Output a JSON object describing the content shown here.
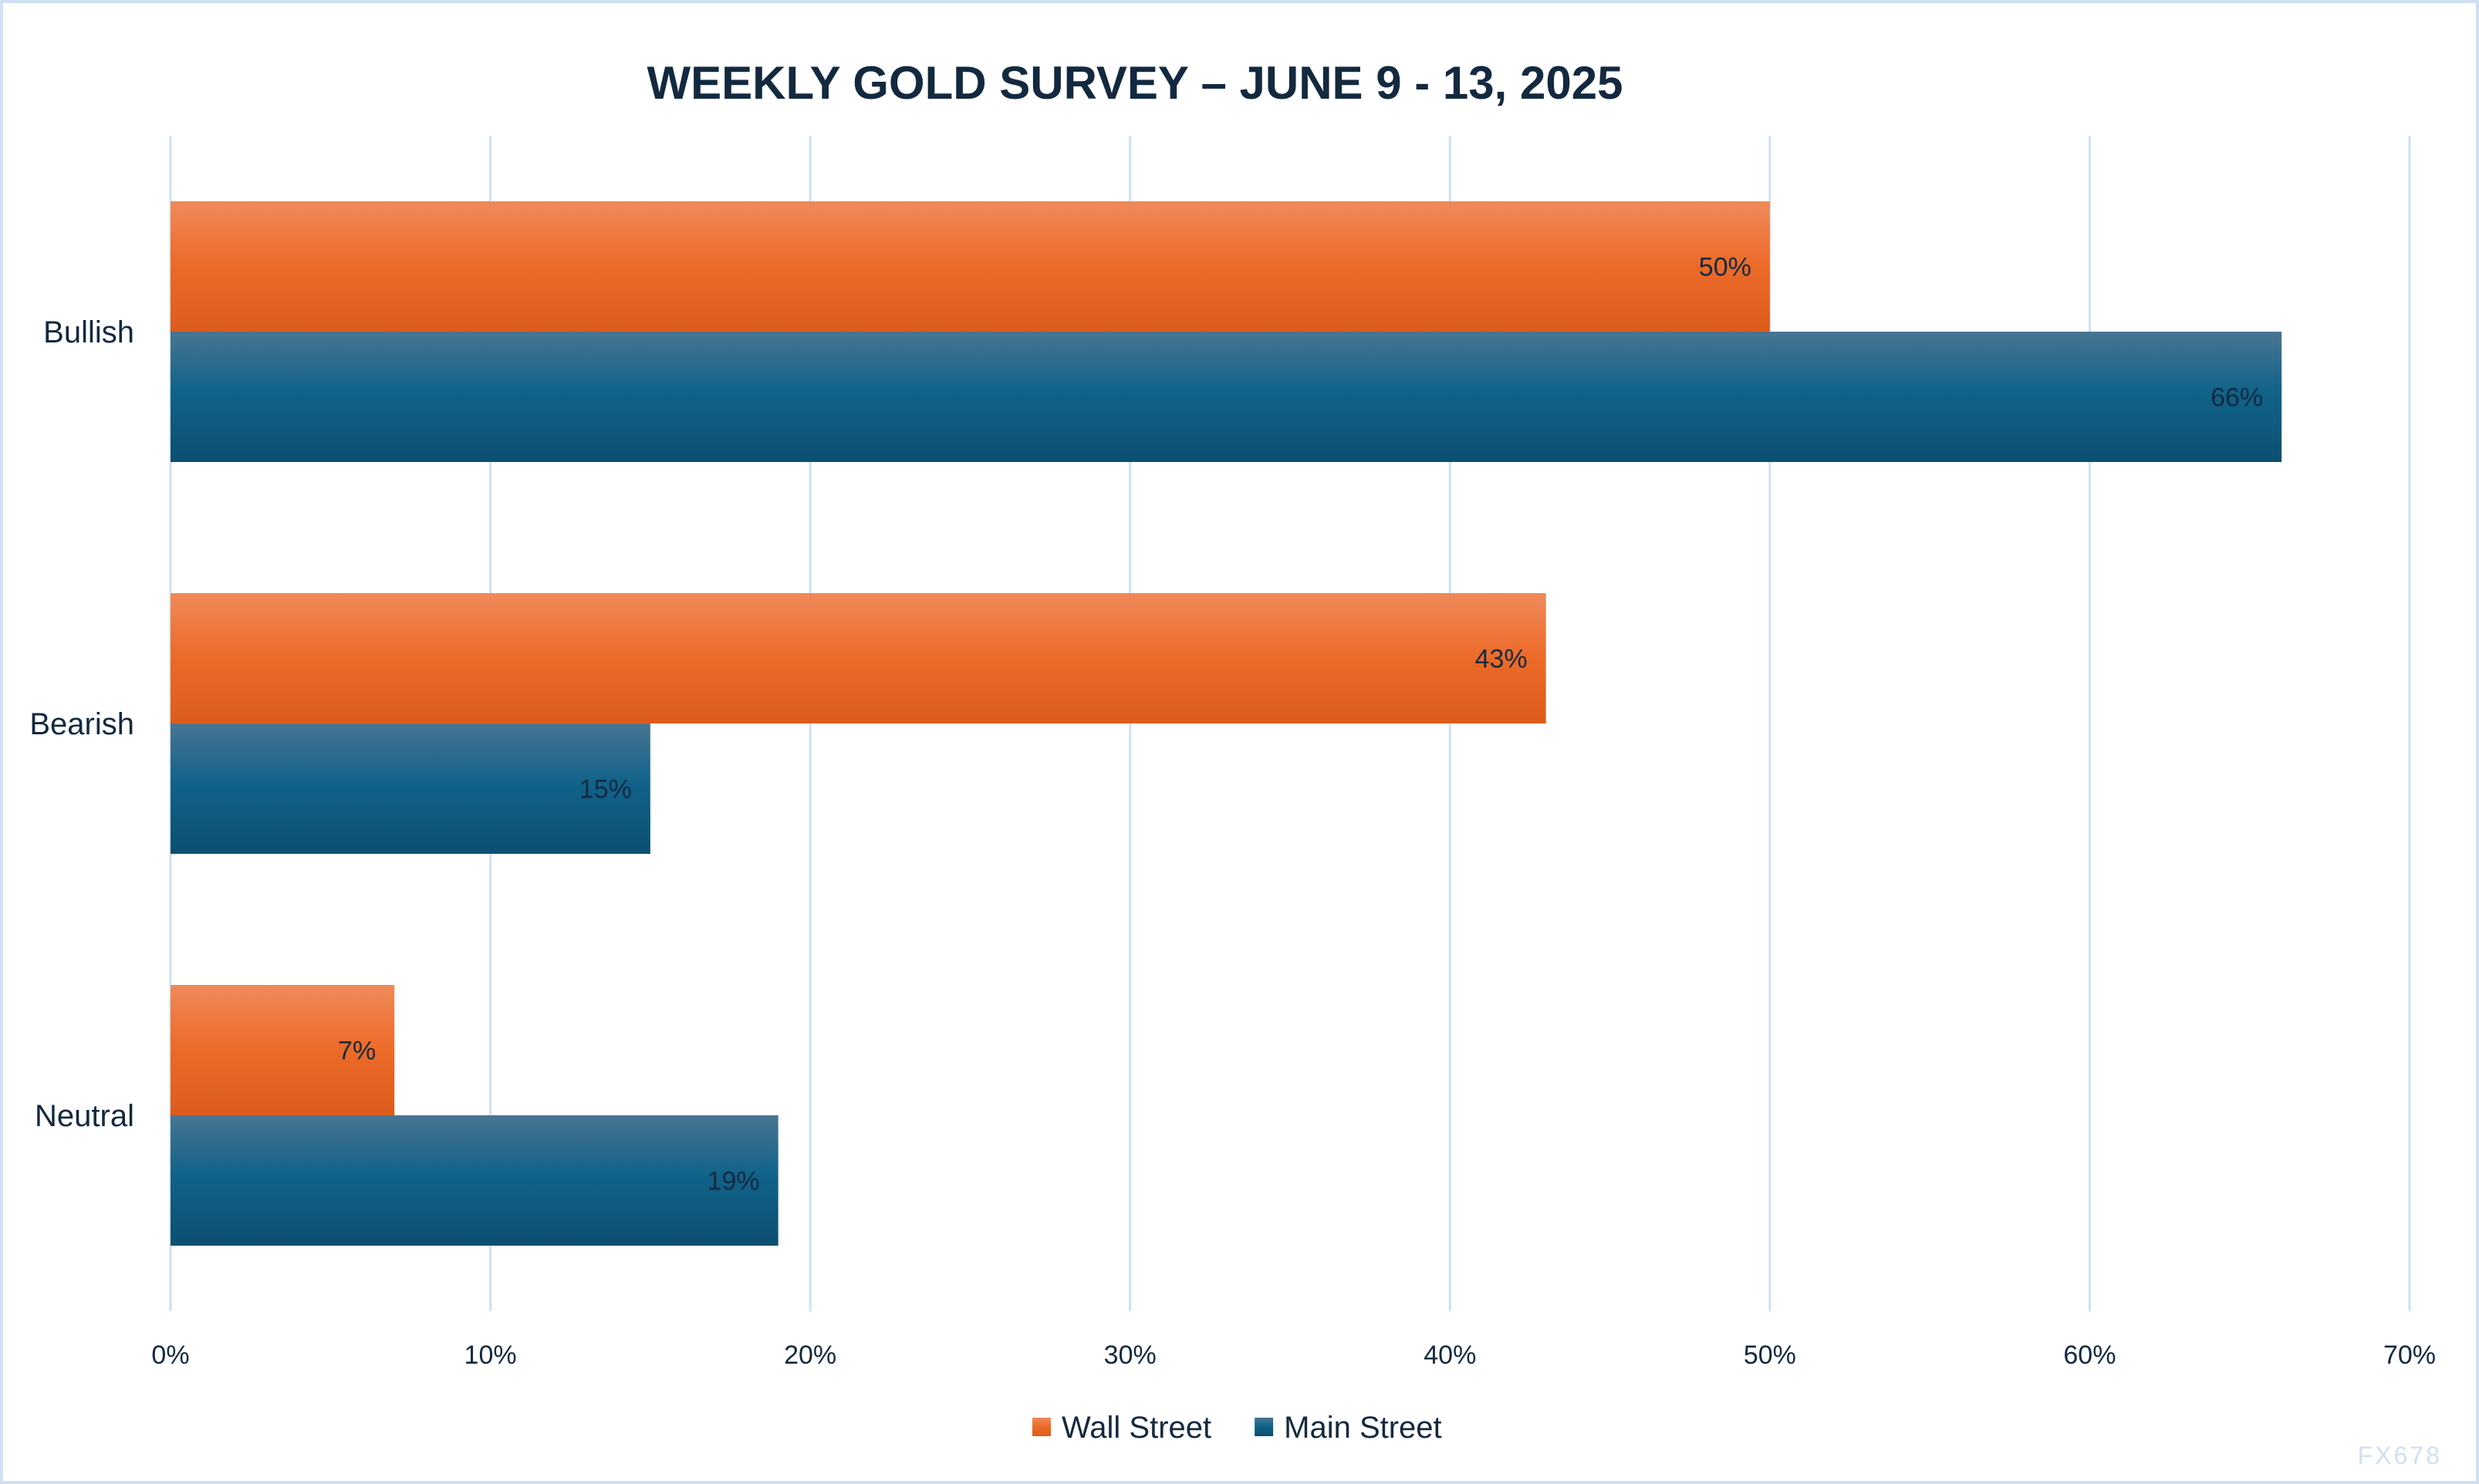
{
  "chart_data": {
    "type": "bar",
    "orientation": "horizontal",
    "title": "WEEKLY GOLD SURVEY – JUNE 9 - 13, 2025",
    "categories": [
      "Bullish",
      "Bearish",
      "Neutral"
    ],
    "series": [
      {
        "name": "Wall Street",
        "values": [
          50,
          43,
          7
        ],
        "labels": [
          "50%",
          "43%",
          "7%"
        ],
        "color": "#e8651e"
      },
      {
        "name": "Main Street",
        "values": [
          66,
          15,
          19
        ],
        "labels": [
          "66%",
          "15%",
          "19%"
        ],
        "color": "#0f5a7e"
      }
    ],
    "xlim": [
      0,
      70
    ],
    "x_ticks": [
      "0%",
      "10%",
      "20%",
      "30%",
      "40%",
      "50%",
      "60%",
      "70%"
    ],
    "grid": true,
    "legend": "bottom",
    "watermark": "FX678"
  }
}
